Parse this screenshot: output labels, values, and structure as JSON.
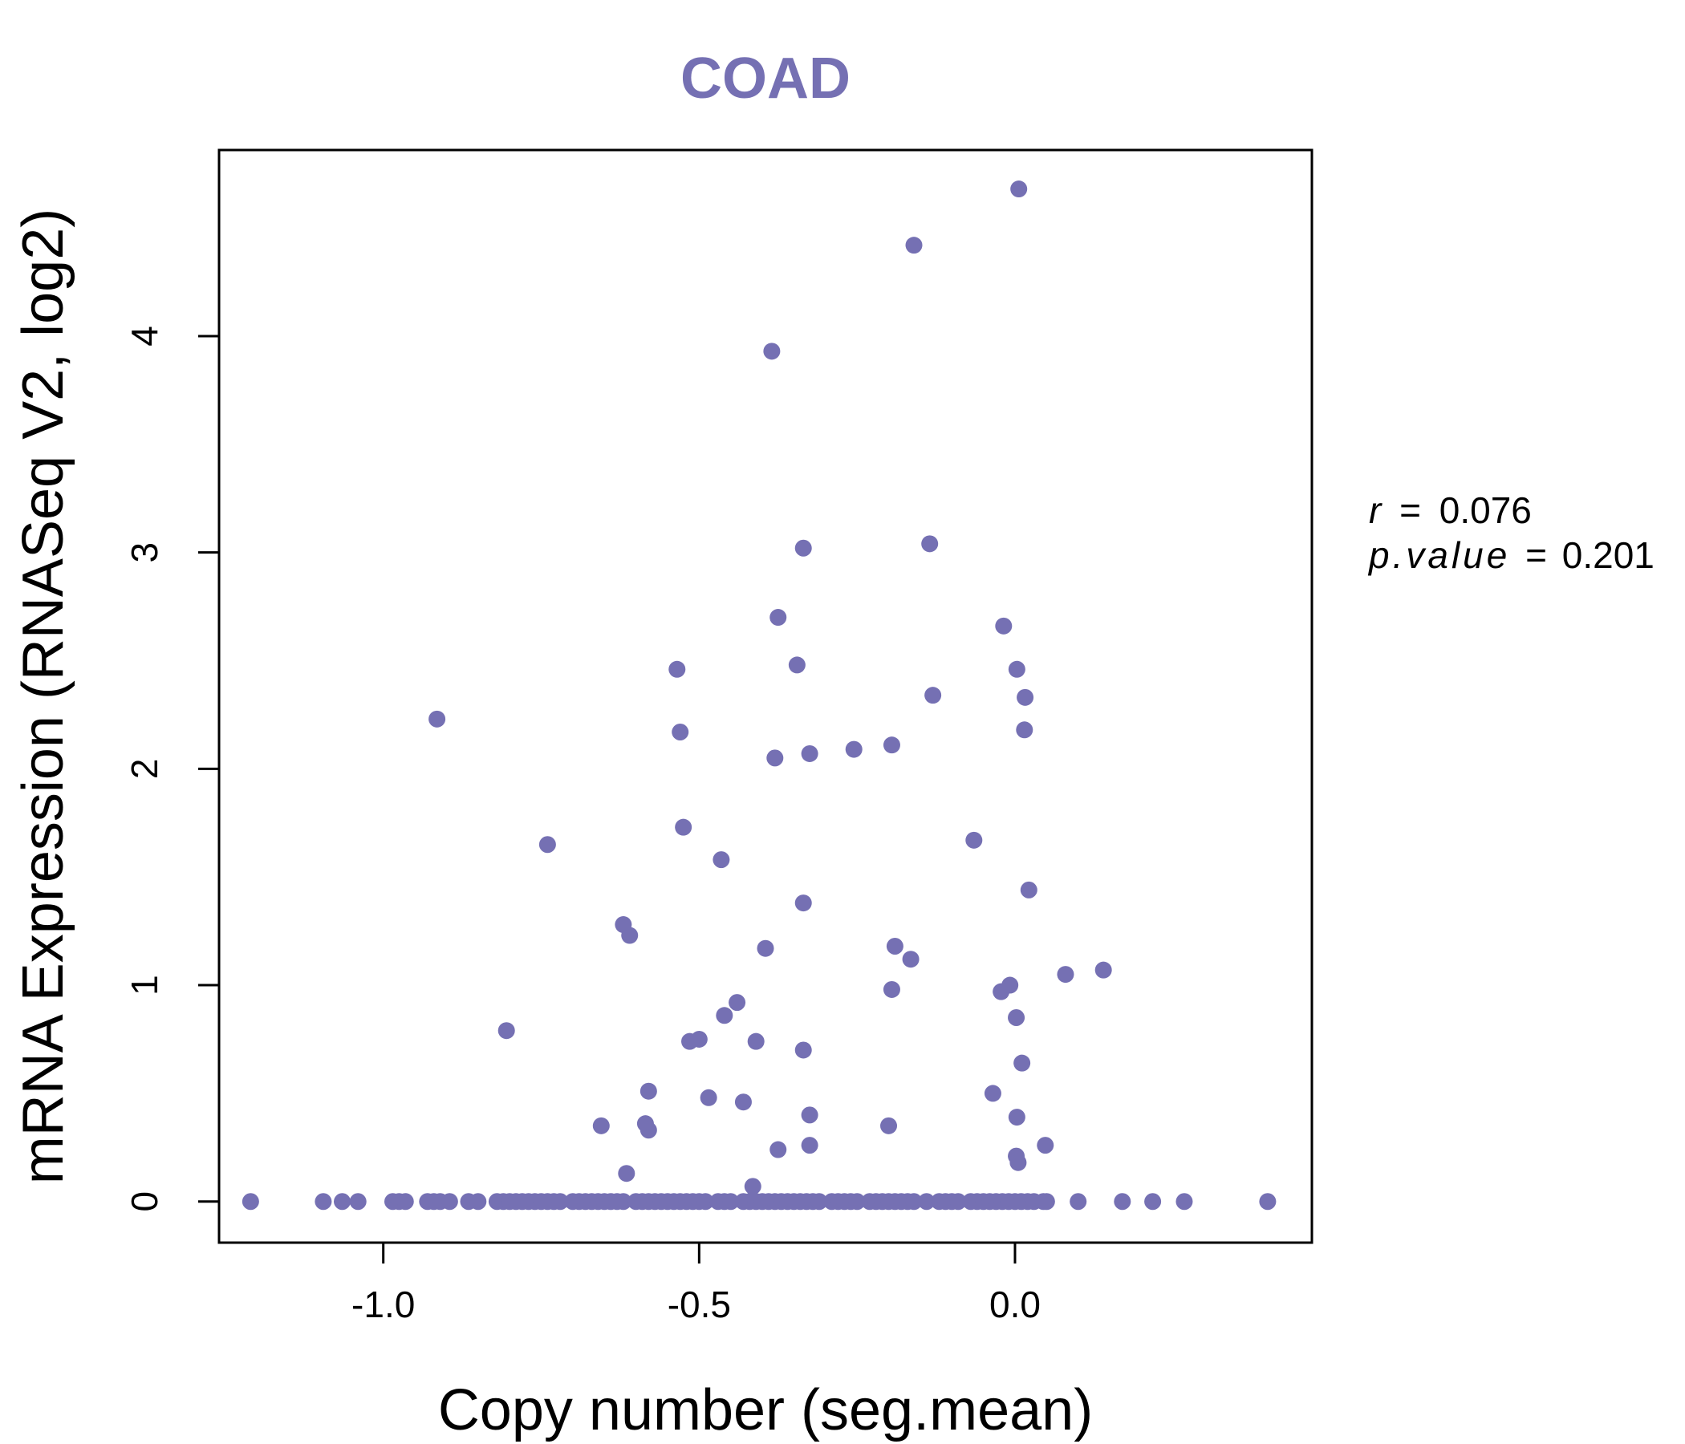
{
  "chart_data": {
    "type": "scatter",
    "title": "COAD",
    "xlabel": "Copy number (seg.mean)",
    "ylabel": "mRNA Expression (RNASeq V2, log2)",
    "xlim": [
      -1.26,
      0.47
    ],
    "ylim": [
      -0.19,
      4.86
    ],
    "x_ticks": [
      -1.0,
      -0.5,
      0.0
    ],
    "x_tick_labels": [
      "-1.0",
      "-0.5",
      "0.0"
    ],
    "y_ticks": [
      0,
      1,
      2,
      3,
      4
    ],
    "y_tick_labels": [
      "0",
      "1",
      "2",
      "3",
      "4"
    ],
    "point_color": "#7570b3",
    "annotation": {
      "r_label": "r",
      "r_value": "0.076",
      "p_label": "p.value",
      "p_value": "0.201",
      "eq": "="
    },
    "points": [
      [
        0.006,
        4.68
      ],
      [
        -0.16,
        4.42
      ],
      [
        -0.385,
        3.93
      ],
      [
        -0.335,
        3.02
      ],
      [
        -0.135,
        3.04
      ],
      [
        -0.375,
        2.7
      ],
      [
        -0.345,
        2.48
      ],
      [
        -0.535,
        2.46
      ],
      [
        -0.018,
        2.66
      ],
      [
        0.003,
        2.46
      ],
      [
        0.016,
        2.33
      ],
      [
        -0.13,
        2.34
      ],
      [
        -0.915,
        2.23
      ],
      [
        -0.53,
        2.17
      ],
      [
        0.015,
        2.18
      ],
      [
        -0.38,
        2.05
      ],
      [
        -0.325,
        2.07
      ],
      [
        -0.255,
        2.09
      ],
      [
        -0.195,
        2.11
      ],
      [
        -0.525,
        1.73
      ],
      [
        -0.74,
        1.65
      ],
      [
        -0.065,
        1.67
      ],
      [
        -0.465,
        1.58
      ],
      [
        0.022,
        1.44
      ],
      [
        -0.335,
        1.38
      ],
      [
        -0.62,
        1.28
      ],
      [
        -0.61,
        1.23
      ],
      [
        -0.395,
        1.17
      ],
      [
        -0.19,
        1.18
      ],
      [
        -0.165,
        1.12
      ],
      [
        0.08,
        1.05
      ],
      [
        0.14,
        1.07
      ],
      [
        -0.195,
        0.98
      ],
      [
        -0.022,
        0.97
      ],
      [
        -0.008,
        1.0
      ],
      [
        -0.44,
        0.92
      ],
      [
        -0.46,
        0.86
      ],
      [
        0.002,
        0.85
      ],
      [
        -0.805,
        0.79
      ],
      [
        -0.515,
        0.74
      ],
      [
        -0.5,
        0.75
      ],
      [
        -0.41,
        0.74
      ],
      [
        -0.335,
        0.7
      ],
      [
        0.011,
        0.64
      ],
      [
        -0.58,
        0.51
      ],
      [
        -0.485,
        0.48
      ],
      [
        -0.43,
        0.46
      ],
      [
        -0.035,
        0.5
      ],
      [
        -0.325,
        0.4
      ],
      [
        0.003,
        0.39
      ],
      [
        -0.655,
        0.35
      ],
      [
        -0.585,
        0.36
      ],
      [
        -0.58,
        0.33
      ],
      [
        -0.2,
        0.35
      ],
      [
        -0.375,
        0.24
      ],
      [
        -0.325,
        0.26
      ],
      [
        0.048,
        0.26
      ],
      [
        0.002,
        0.21
      ],
      [
        0.005,
        0.18
      ],
      [
        -0.615,
        0.13
      ],
      [
        -0.415,
        0.07
      ],
      [
        -1.21,
        0
      ],
      [
        -1.095,
        0
      ],
      [
        -1.065,
        0
      ],
      [
        -1.04,
        0
      ],
      [
        -0.985,
        0
      ],
      [
        -0.975,
        0
      ],
      [
        -0.965,
        0
      ],
      [
        -0.93,
        0
      ],
      [
        -0.92,
        0
      ],
      [
        -0.91,
        0
      ],
      [
        -0.895,
        0
      ],
      [
        -0.865,
        0
      ],
      [
        -0.85,
        0
      ],
      [
        -0.82,
        0
      ],
      [
        -0.81,
        0
      ],
      [
        -0.8,
        0
      ],
      [
        -0.79,
        0
      ],
      [
        -0.78,
        0
      ],
      [
        -0.77,
        0
      ],
      [
        -0.76,
        0
      ],
      [
        -0.75,
        0
      ],
      [
        -0.74,
        0
      ],
      [
        -0.73,
        0
      ],
      [
        -0.72,
        0
      ],
      [
        -0.7,
        0
      ],
      [
        -0.69,
        0
      ],
      [
        -0.68,
        0
      ],
      [
        -0.67,
        0
      ],
      [
        -0.66,
        0
      ],
      [
        -0.65,
        0
      ],
      [
        -0.64,
        0
      ],
      [
        -0.63,
        0
      ],
      [
        -0.62,
        0
      ],
      [
        -0.6,
        0
      ],
      [
        -0.59,
        0
      ],
      [
        -0.58,
        0
      ],
      [
        -0.57,
        0
      ],
      [
        -0.56,
        0
      ],
      [
        -0.55,
        0
      ],
      [
        -0.54,
        0
      ],
      [
        -0.53,
        0
      ],
      [
        -0.52,
        0
      ],
      [
        -0.51,
        0
      ],
      [
        -0.5,
        0
      ],
      [
        -0.49,
        0
      ],
      [
        -0.47,
        0
      ],
      [
        -0.46,
        0
      ],
      [
        -0.45,
        0
      ],
      [
        -0.43,
        0
      ],
      [
        -0.42,
        0
      ],
      [
        -0.41,
        0
      ],
      [
        -0.4,
        0
      ],
      [
        -0.39,
        0
      ],
      [
        -0.38,
        0
      ],
      [
        -0.37,
        0
      ],
      [
        -0.36,
        0
      ],
      [
        -0.35,
        0
      ],
      [
        -0.34,
        0
      ],
      [
        -0.33,
        0
      ],
      [
        -0.32,
        0
      ],
      [
        -0.31,
        0
      ],
      [
        -0.29,
        0
      ],
      [
        -0.28,
        0
      ],
      [
        -0.27,
        0
      ],
      [
        -0.26,
        0
      ],
      [
        -0.25,
        0
      ],
      [
        -0.23,
        0
      ],
      [
        -0.22,
        0
      ],
      [
        -0.21,
        0
      ],
      [
        -0.2,
        0
      ],
      [
        -0.19,
        0
      ],
      [
        -0.18,
        0
      ],
      [
        -0.17,
        0
      ],
      [
        -0.16,
        0
      ],
      [
        -0.14,
        0
      ],
      [
        -0.12,
        0
      ],
      [
        -0.11,
        0
      ],
      [
        -0.1,
        0
      ],
      [
        -0.09,
        0
      ],
      [
        -0.07,
        0
      ],
      [
        -0.06,
        0
      ],
      [
        -0.05,
        0
      ],
      [
        -0.04,
        0
      ],
      [
        -0.03,
        0
      ],
      [
        -0.02,
        0
      ],
      [
        -0.01,
        0
      ],
      [
        0.0,
        0
      ],
      [
        0.01,
        0
      ],
      [
        0.02,
        0
      ],
      [
        0.03,
        0
      ],
      [
        0.045,
        0
      ],
      [
        0.05,
        0
      ],
      [
        0.1,
        0
      ],
      [
        0.17,
        0
      ],
      [
        0.218,
        0
      ],
      [
        0.268,
        0
      ],
      [
        0.4,
        0
      ]
    ]
  }
}
